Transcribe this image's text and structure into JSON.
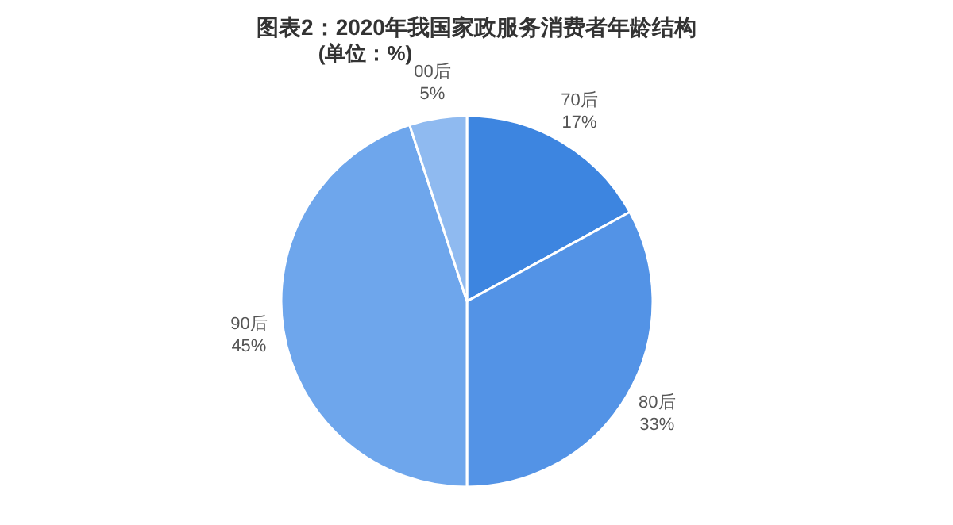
{
  "chart_data": {
    "type": "pie",
    "title": "图表2：2020年我国家政服务消费者年龄结构",
    "subtitle": "(单位：%)",
    "categories": [
      "70后",
      "80后",
      "90后",
      "00后"
    ],
    "values": [
      17,
      33,
      45,
      5
    ],
    "value_labels": [
      "17%",
      "33%",
      "45%",
      "5%"
    ],
    "colors": [
      "#3d85e0",
      "#5393e6",
      "#6ea6ec",
      "#8fbaf0"
    ],
    "legend": false
  }
}
